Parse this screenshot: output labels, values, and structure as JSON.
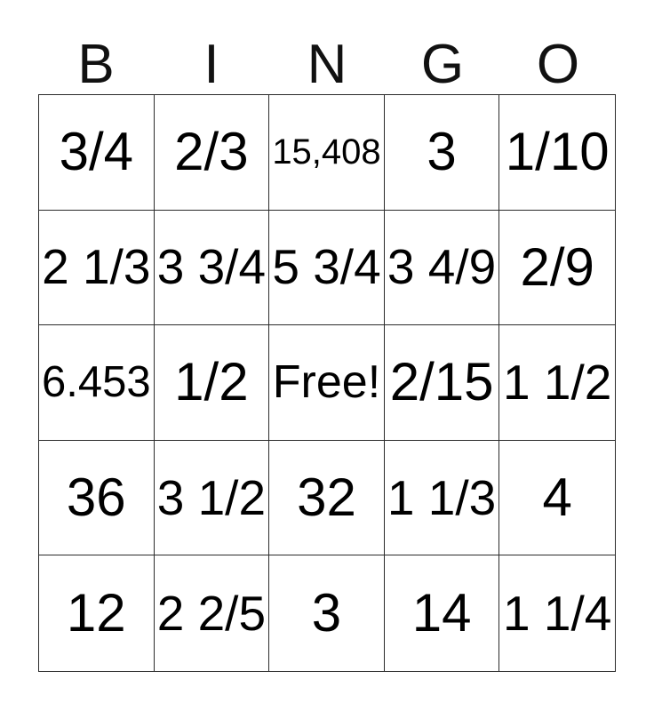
{
  "header": {
    "letters": [
      "B",
      "I",
      "N",
      "G",
      "O"
    ]
  },
  "grid": {
    "rows": [
      [
        "3/4",
        "2/3",
        "15,408",
        "3",
        "1/10"
      ],
      [
        "2 1/3",
        "3 3/4",
        "5 3/4",
        "3 4/9",
        "2/9"
      ],
      [
        "6.453",
        "1/2",
        "Free!",
        "2/15",
        "1 1/2"
      ],
      [
        "36",
        "3 1/2",
        "32",
        "1 1/3",
        "4"
      ],
      [
        "12",
        "2 2/5",
        "3",
        "14",
        "1 1/4"
      ]
    ]
  },
  "colors": {
    "background": "#ffffff",
    "grid_line": "#2b2b2b",
    "text": "#000000"
  }
}
